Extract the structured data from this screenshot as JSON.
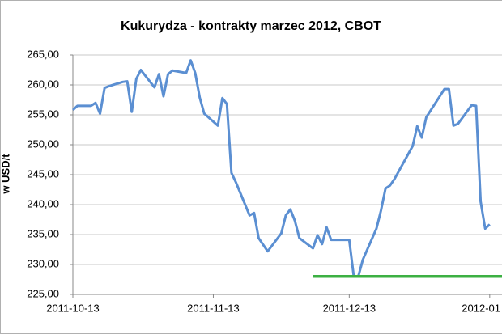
{
  "chart_data": {
    "type": "line",
    "title": "Kukurydza - kontrakty marzec 2012, CBOT",
    "y_label": "w USD/t",
    "x": [
      "2011-10-13",
      "2011-10-14",
      "2011-10-17",
      "2011-10-18",
      "2011-10-19",
      "2011-10-20",
      "2011-10-21",
      "2011-10-24",
      "2011-10-25",
      "2011-10-26",
      "2011-10-27",
      "2011-10-28",
      "2011-10-31",
      "2011-11-01",
      "2011-11-02",
      "2011-11-03",
      "2011-11-04",
      "2011-11-07",
      "2011-11-08",
      "2011-11-09",
      "2011-11-10",
      "2011-11-11",
      "2011-11-14",
      "2011-11-15",
      "2011-11-16",
      "2011-11-17",
      "2011-11-18",
      "2011-11-21",
      "2011-11-22",
      "2011-11-23",
      "2011-11-25",
      "2011-11-28",
      "2011-11-29",
      "2011-11-30",
      "2011-12-01",
      "2011-12-02",
      "2011-12-05",
      "2011-12-06",
      "2011-12-07",
      "2011-12-08",
      "2011-12-09",
      "2011-12-12",
      "2011-12-13",
      "2011-12-14",
      "2011-12-15",
      "2011-12-16",
      "2011-12-19",
      "2011-12-20",
      "2011-12-21",
      "2011-12-22",
      "2011-12-23",
      "2011-12-27",
      "2011-12-28",
      "2011-12-29",
      "2011-12-30",
      "2012-01-03",
      "2012-01-04",
      "2012-01-05",
      "2012-01-06",
      "2012-01-09",
      "2012-01-10",
      "2012-01-11",
      "2012-01-12",
      "2012-01-13"
    ],
    "values": [
      255.8,
      256.5,
      256.5,
      257.0,
      255.2,
      259.5,
      259.8,
      260.5,
      260.6,
      255.5,
      261.0,
      262.5,
      259.6,
      261.8,
      258.1,
      261.8,
      262.4,
      262.0,
      264.1,
      262.0,
      257.9,
      255.2,
      253.2,
      257.8,
      256.8,
      245.3,
      243.7,
      238.2,
      238.6,
      234.4,
      232.2,
      235.2,
      238.2,
      239.2,
      237.3,
      234.4,
      232.7,
      234.9,
      233.4,
      236.2,
      234.1,
      234.1,
      234.1,
      228.0,
      228.0,
      230.8,
      236.0,
      239.0,
      242.7,
      243.2,
      244.3,
      249.8,
      253.1,
      251.2,
      254.6,
      259.3,
      259.3,
      253.2,
      253.5,
      256.6,
      256.5,
      240.5,
      236.0,
      236.7
    ],
    "color": "#5b8fd2",
    "reference_line": {
      "value": 228,
      "from": "2011-12-05",
      "color": "#3cb043"
    },
    "xlim": [
      "2011-10-13",
      "2012-01-15"
    ],
    "xticks": [
      "2011-10-13",
      "2011-11-13",
      "2011-12-13",
      {
        "value": "2012-01-13",
        "label": "2012-01"
      }
    ],
    "ylim": [
      225,
      265
    ],
    "yticks": [
      {
        "value": 225,
        "label": "225,00"
      },
      {
        "value": 230,
        "label": "230,00"
      },
      {
        "value": 235,
        "label": "235,00"
      },
      {
        "value": 240,
        "label": "240,00"
      },
      {
        "value": 245,
        "label": "245,00"
      },
      {
        "value": 250,
        "label": "250,00"
      },
      {
        "value": 255,
        "label": "255,00"
      },
      {
        "value": 260,
        "label": "260,00"
      },
      {
        "value": 265,
        "label": "265,00"
      }
    ],
    "grid": true
  }
}
